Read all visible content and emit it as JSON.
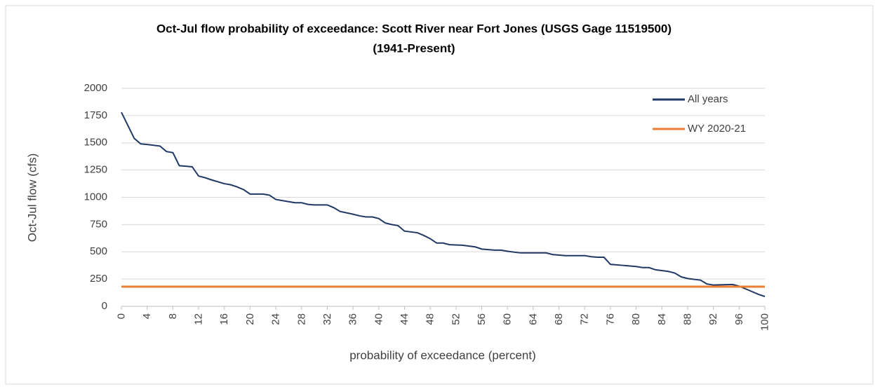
{
  "chart_data": {
    "type": "line",
    "title": "Oct-Jul flow probability  of exceedance: Scott River near Fort Jones (USGS Gage 11519500)",
    "subtitle": "(1941-Present)",
    "x_label": "probability of exceedance (percent)",
    "y_label": "Oct-Jul flow (cfs)",
    "series": [
      {
        "name": "All years",
        "color": "#203864",
        "x": [
          0,
          1,
          2,
          3,
          4,
          6,
          7,
          8,
          9,
          10,
          11,
          12,
          13,
          14,
          16,
          17,
          18,
          19,
          20,
          22,
          23,
          24,
          26,
          27,
          28,
          29,
          30,
          32,
          33,
          34,
          36,
          37,
          38,
          39,
          40,
          41,
          42,
          43,
          44,
          46,
          47,
          48,
          49,
          50,
          51,
          53,
          55,
          56,
          58,
          59,
          60,
          62,
          66,
          67,
          69,
          72,
          73,
          74,
          75,
          76,
          78,
          80,
          81,
          82,
          83,
          85,
          86,
          87,
          88,
          90,
          91,
          92,
          95,
          96,
          97,
          98,
          99,
          100
        ],
        "values": [
          1780,
          1660,
          1540,
          1490,
          1485,
          1470,
          1420,
          1410,
          1290,
          1285,
          1280,
          1195,
          1180,
          1160,
          1125,
          1115,
          1095,
          1070,
          1030,
          1030,
          1020,
          980,
          960,
          950,
          950,
          935,
          930,
          930,
          905,
          870,
          845,
          830,
          820,
          820,
          805,
          765,
          750,
          740,
          690,
          675,
          650,
          620,
          580,
          580,
          565,
          560,
          545,
          525,
          515,
          515,
          505,
          490,
          490,
          475,
          465,
          465,
          455,
          450,
          450,
          385,
          375,
          365,
          355,
          355,
          335,
          320,
          305,
          270,
          255,
          240,
          205,
          195,
          200,
          185,
          160,
          135,
          110,
          90
        ]
      },
      {
        "name": "WY 2020-21",
        "color": "#ed7d31",
        "x": [
          0,
          100
        ],
        "values": [
          180,
          180
        ]
      }
    ],
    "xlim": [
      0,
      100
    ],
    "xticks": [
      0,
      4,
      8,
      12,
      16,
      20,
      24,
      28,
      32,
      36,
      40,
      44,
      48,
      52,
      56,
      60,
      64,
      68,
      72,
      76,
      80,
      84,
      88,
      92,
      96,
      100
    ],
    "ylim": [
      0,
      2000
    ],
    "yticks": [
      0,
      250,
      500,
      750,
      1000,
      1250,
      1500,
      1750,
      2000
    ],
    "grid": true,
    "legend": "upper right"
  }
}
